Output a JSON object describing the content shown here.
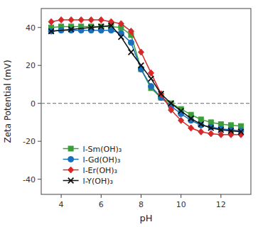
{
  "chart_data": {
    "type": "line",
    "xlabel": "pH",
    "ylabel": "Zeta Potential (mV)",
    "xlim": [
      3.0,
      13.5
    ],
    "ylim": [
      -48,
      50
    ],
    "xticks": [
      4,
      6,
      8,
      10,
      12
    ],
    "yticks": [
      -40,
      -20,
      0,
      20,
      40
    ],
    "hlines": [
      0
    ],
    "grid": false,
    "legend": "lower left",
    "series": [
      {
        "name": "l-Sm(OH)₃",
        "color": "#3a9e3a",
        "marker": "square",
        "x": [
          3.5,
          4.0,
          4.5,
          5.0,
          5.5,
          6.0,
          6.5,
          7.0,
          7.5,
          8.0,
          8.5,
          9.0,
          9.5,
          10.0,
          10.5,
          11.0,
          11.5,
          12.0,
          12.5,
          13.0
        ],
        "values": [
          40.0,
          40.5,
          40.5,
          40.5,
          40.5,
          40.5,
          40.5,
          40.0,
          36.0,
          18.0,
          8.0,
          3.0,
          0.0,
          -3.0,
          -6.0,
          -8.5,
          -10.0,
          -11.0,
          -11.5,
          -12.0
        ]
      },
      {
        "name": "l-Gd(OH)₃",
        "color": "#1a6fbd",
        "marker": "circle",
        "x": [
          3.5,
          4.0,
          4.5,
          5.0,
          5.5,
          6.0,
          6.5,
          7.0,
          7.5,
          8.0,
          8.5,
          9.0,
          9.5,
          10.0,
          10.5,
          11.0,
          11.5,
          12.0,
          12.5,
          13.0
        ],
        "values": [
          38.0,
          38.5,
          38.5,
          38.5,
          38.5,
          38.5,
          38.5,
          37.0,
          32.0,
          18.0,
          9.0,
          3.0,
          -1.5,
          -5.5,
          -9.0,
          -11.5,
          -12.5,
          -13.5,
          -14.0,
          -14.5
        ]
      },
      {
        "name": "l-Er(OH)₃",
        "color": "#d62828",
        "marker": "diamond",
        "x": [
          3.5,
          4.0,
          4.5,
          5.0,
          5.5,
          6.0,
          6.5,
          7.0,
          7.5,
          8.0,
          8.5,
          9.0,
          9.5,
          10.0,
          10.5,
          11.0,
          11.5,
          12.0,
          12.5,
          13.0
        ],
        "values": [
          43.0,
          44.0,
          44.0,
          44.0,
          44.0,
          44.0,
          43.0,
          42.0,
          38.0,
          27.0,
          16.0,
          5.0,
          -3.5,
          -9.0,
          -13.0,
          -15.0,
          -16.0,
          -16.5,
          -16.5,
          -16.5
        ]
      },
      {
        "name": "l-Y(OH)₃",
        "color": "#111111",
        "marker": "x",
        "x": [
          3.5,
          4.5,
          5.5,
          6.0,
          6.5,
          7.0,
          7.5,
          8.0,
          8.5,
          9.0,
          9.5,
          10.0,
          10.5,
          11.0,
          11.5,
          12.0,
          12.5,
          13.0
        ],
        "values": [
          38.0,
          39.0,
          40.0,
          40.5,
          41.0,
          35.0,
          27.0,
          20.0,
          13.0,
          5.0,
          0.0,
          -4.0,
          -8.0,
          -11.0,
          -13.0,
          -14.0,
          -14.5,
          -15.0
        ]
      }
    ]
  }
}
